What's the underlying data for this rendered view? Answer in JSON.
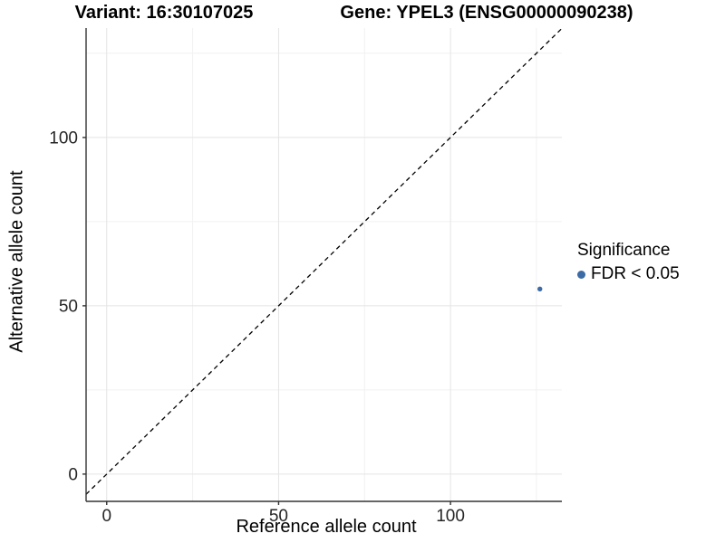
{
  "chart_data": {
    "type": "scatter",
    "title_left": "Variant: 16:30107025",
    "title_right": "Gene: YPEL3 (ENSG00000090238)",
    "xlabel": "Reference allele count",
    "ylabel": "Alternative allele count",
    "xlim": [
      -6,
      132.4
    ],
    "ylim": [
      -8.1,
      132.5
    ],
    "x_ticks": [
      0,
      50,
      100
    ],
    "y_ticks": [
      0,
      50,
      100
    ],
    "x_minor_gridlines": [
      25,
      75,
      125
    ],
    "y_minor_gridlines": [
      25,
      75,
      125
    ],
    "grid": "major and minor gridlines, light gray on white panel",
    "identity_line": {
      "label": "y = x",
      "style": "dashed",
      "color": "#000000"
    },
    "series": [
      {
        "name": "FDR < 0.05",
        "color": "#3C6CA6",
        "marker": "circle",
        "points": [
          {
            "x": 126,
            "y": 55
          }
        ]
      }
    ],
    "legend": {
      "title": "Significance",
      "position": "right",
      "items": [
        {
          "label": "FDR < 0.05",
          "color": "#3C6CA6",
          "marker": "circle"
        }
      ]
    },
    "colors": {
      "background": "#FFFFFF",
      "axis_line": "#333333",
      "tick_text": "#262626",
      "grid_major": "#E4E4E4",
      "grid_minor": "#F1F1F1",
      "point": "#3C6CA6"
    }
  }
}
